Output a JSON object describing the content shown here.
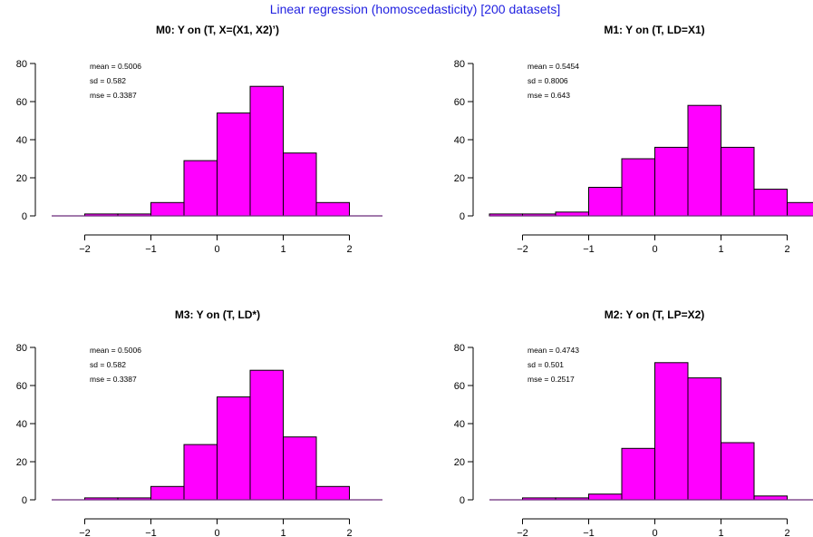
{
  "page": {
    "suptitle": "Linear regression (homoscedasticity) [200 datasets]",
    "colors": {
      "bar_fill": "#ff00ff",
      "bar_stroke": "#000000",
      "suptitle": "#1f1fe0",
      "baseline": "#6a2a7a"
    }
  },
  "chart_data": [
    {
      "type": "bar",
      "title": "M0:  Y on (T, X=(X1, X2)’)",
      "stats": {
        "mean": "mean = 0.5006",
        "sd": "sd = 0.582",
        "mse": "mse = 0.3387"
      },
      "bin_edges": [
        -2.5,
        -2,
        -1.5,
        -1,
        -0.5,
        0,
        0.5,
        1,
        1.5,
        2,
        2.5
      ],
      "values": [
        0,
        1,
        1,
        7,
        29,
        54,
        68,
        33,
        7,
        0
      ],
      "xlim": [
        -2.5,
        2.5
      ],
      "ylim": [
        0,
        80
      ],
      "xticks": [
        -2,
        -1,
        0,
        1,
        2
      ],
      "yticks": [
        0,
        20,
        40,
        60,
        80
      ],
      "xtick_labels": [
        "−2",
        "−1",
        "0",
        "1",
        "2"
      ]
    },
    {
      "type": "bar",
      "title": "M1: Y on (T, LD=X1)",
      "stats": {
        "mean": "mean = 0.5454",
        "sd": "sd = 0.8006",
        "mse": "mse = 0.643"
      },
      "bin_edges": [
        -2.5,
        -2,
        -1.5,
        -1,
        -0.5,
        0,
        0.5,
        1,
        1.5,
        2,
        2.5
      ],
      "values": [
        1,
        1,
        2,
        15,
        30,
        36,
        58,
        36,
        14,
        7
      ],
      "xlim": [
        -2.5,
        2.5
      ],
      "ylim": [
        0,
        80
      ],
      "xticks": [
        -2,
        -1,
        0,
        1,
        2
      ],
      "yticks": [
        0,
        20,
        40,
        60,
        80
      ],
      "xtick_labels": [
        "−2",
        "−1",
        "0",
        "1",
        "2"
      ]
    },
    {
      "type": "bar",
      "title": "M3:  Y on (T, LD*)",
      "stats": {
        "mean": "mean = 0.5006",
        "sd": "sd = 0.582",
        "mse": "mse = 0.3387"
      },
      "bin_edges": [
        -2.5,
        -2,
        -1.5,
        -1,
        -0.5,
        0,
        0.5,
        1,
        1.5,
        2,
        2.5
      ],
      "values": [
        0,
        1,
        1,
        7,
        29,
        54,
        68,
        33,
        7,
        0
      ],
      "xlim": [
        -2.5,
        2.5
      ],
      "ylim": [
        0,
        80
      ],
      "xticks": [
        -2,
        -1,
        0,
        1,
        2
      ],
      "yticks": [
        0,
        20,
        40,
        60,
        80
      ],
      "xtick_labels": [
        "−2",
        "−1",
        "0",
        "1",
        "2"
      ]
    },
    {
      "type": "bar",
      "title": "M2:  Y on (T, LP=X2)",
      "stats": {
        "mean": "mean = 0.4743",
        "sd": "sd = 0.501",
        "mse": "mse = 0.2517"
      },
      "bin_edges": [
        -2.5,
        -2,
        -1.5,
        -1,
        -0.5,
        0,
        0.5,
        1,
        1.5,
        2,
        2.5
      ],
      "values": [
        0,
        1,
        1,
        3,
        27,
        72,
        64,
        30,
        2,
        0
      ],
      "xlim": [
        -2.5,
        2.5
      ],
      "ylim": [
        0,
        80
      ],
      "xticks": [
        -2,
        -1,
        0,
        1,
        2
      ],
      "yticks": [
        0,
        20,
        40,
        60,
        80
      ],
      "xtick_labels": [
        "−2",
        "−1",
        "0",
        "1",
        "2"
      ]
    }
  ]
}
